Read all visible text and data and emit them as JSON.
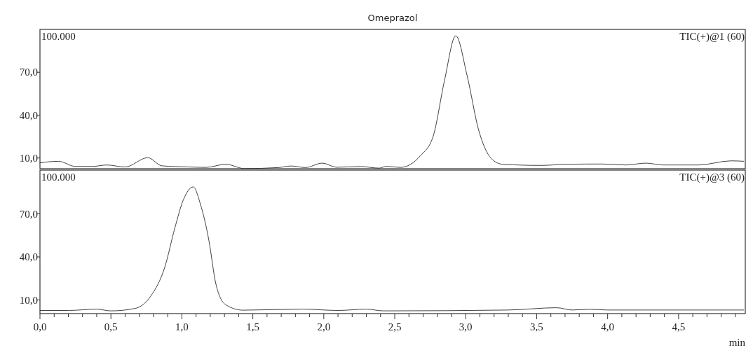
{
  "chart_data": [
    {
      "type": "line",
      "title": "Omeprazol",
      "tick_labels": "y",
      "xlim": [
        0,
        4.97
      ],
      "ylim": [
        2.5,
        100
      ],
      "yticks": [
        {
          "value": 10,
          "label": "10,0"
        },
        {
          "value": 40,
          "label": "40,0"
        },
        {
          "value": 70,
          "label": "70,0"
        }
      ],
      "annotations": [
        "100.000"
      ],
      "marker": "none",
      "line_style": "solid",
      "grid": false,
      "series": [
        {
          "name": "TIC(+)@1 (60)",
          "color": "#404040",
          "x": [
            0,
            0.13,
            0.25,
            0.37,
            0.47,
            0.6,
            0.76,
            0.86,
            1.05,
            1.17,
            1.31,
            1.44,
            1.68,
            1.77,
            1.87,
            1.99,
            2.09,
            2.26,
            2.39,
            2.44,
            2.54,
            2.68,
            2.77,
            2.85,
            2.93,
            3.01,
            3.09,
            3.18,
            3.26,
            3.53,
            3.71,
            3.96,
            4.13,
            4.27,
            4.39,
            4.64,
            4.87,
            4.96
          ],
          "values": [
            6.6,
            7.7,
            4.1,
            4.1,
            5.1,
            3.7,
            10.2,
            4.5,
            3.7,
            3.4,
            5.6,
            2.6,
            3.3,
            4.4,
            3.3,
            6.4,
            3.5,
            4.0,
            2.9,
            4.1,
            3.4,
            11.5,
            25,
            64,
            95.5,
            67.6,
            30,
            9.7,
            5.6,
            4.8,
            5.6,
            5.8,
            5.1,
            6.4,
            5.1,
            5.1,
            8.0,
            7.7
          ]
        }
      ]
    },
    {
      "type": "line",
      "xlabel": "min",
      "xlim": [
        0,
        4.97
      ],
      "ylim": [
        0.5,
        100.5
      ],
      "yticks": [
        {
          "value": 10,
          "label": "10,0"
        },
        {
          "value": 40,
          "label": "40,0"
        },
        {
          "value": 70,
          "label": "70,0"
        }
      ],
      "xticks": [
        {
          "value": 0,
          "label": "0,0"
        },
        {
          "value": 0.1,
          "label": null
        },
        {
          "value": 0.2,
          "label": null
        },
        {
          "value": 0.3,
          "label": null
        },
        {
          "value": 0.4,
          "label": null
        },
        {
          "value": 0.5,
          "label": "0,5"
        },
        {
          "value": 0.6,
          "label": null
        },
        {
          "value": 0.7,
          "label": null
        },
        {
          "value": 0.8,
          "label": null
        },
        {
          "value": 0.9,
          "label": null
        },
        {
          "value": 1,
          "label": "1,0"
        },
        {
          "value": 1.1,
          "label": null
        },
        {
          "value": 1.2,
          "label": null
        },
        {
          "value": 1.3,
          "label": null
        },
        {
          "value": 1.4,
          "label": null
        },
        {
          "value": 1.5,
          "label": "1,5"
        },
        {
          "value": 1.6,
          "label": null
        },
        {
          "value": 1.7,
          "label": null
        },
        {
          "value": 1.8,
          "label": null
        },
        {
          "value": 1.9,
          "label": null
        },
        {
          "value": 2,
          "label": "2,0"
        },
        {
          "value": 2.1,
          "label": null
        },
        {
          "value": 2.2,
          "label": null
        },
        {
          "value": 2.3,
          "label": null
        },
        {
          "value": 2.4,
          "label": null
        },
        {
          "value": 2.5,
          "label": "2,5"
        },
        {
          "value": 2.6,
          "label": null
        },
        {
          "value": 2.7,
          "label": null
        },
        {
          "value": 2.8,
          "label": null
        },
        {
          "value": 2.9,
          "label": null
        },
        {
          "value": 3,
          "label": "3,0"
        },
        {
          "value": 3.1,
          "label": null
        },
        {
          "value": 3.2,
          "label": null
        },
        {
          "value": 3.3,
          "label": null
        },
        {
          "value": 3.4,
          "label": null
        },
        {
          "value": 3.5,
          "label": "3,5"
        },
        {
          "value": 3.6,
          "label": null
        },
        {
          "value": 3.7,
          "label": null
        },
        {
          "value": 3.8,
          "label": null
        },
        {
          "value": 3.9,
          "label": null
        },
        {
          "value": 4,
          "label": "4,0"
        },
        {
          "value": 4.1,
          "label": null
        },
        {
          "value": 4.2,
          "label": null
        },
        {
          "value": 4.3,
          "label": null
        },
        {
          "value": 4.4,
          "label": null
        },
        {
          "value": 4.5,
          "label": "4,5"
        },
        {
          "value": 4.6,
          "label": null
        },
        {
          "value": 4.7,
          "label": null
        },
        {
          "value": 4.8,
          "label": null
        },
        {
          "value": 4.9,
          "label": null
        }
      ],
      "annotations": [
        "100.000"
      ],
      "marker": "none",
      "line_style": "solid",
      "grid": false,
      "series": [
        {
          "name": "TIC(+)@3 (60)",
          "color": "#404040",
          "x": [
            0,
            0.2,
            0.4,
            0.5,
            0.67,
            0.78,
            0.88,
            0.95,
            1.01,
            1.08,
            1.13,
            1.19,
            1.24,
            1.31,
            1.43,
            1.85,
            2.1,
            2.3,
            2.42,
            3.3,
            3.64,
            3.75,
            3.87,
            4.0,
            4.96
          ],
          "values": [
            2.7,
            2.7,
            3.6,
            2.4,
            4.1,
            12.6,
            33,
            60,
            79.7,
            88.8,
            77,
            51.7,
            21,
            6.6,
            2.9,
            3.6,
            2.7,
            3.6,
            2.4,
            3.0,
            4.6,
            3.0,
            3.5,
            3.0,
            3.0
          ]
        }
      ]
    }
  ]
}
